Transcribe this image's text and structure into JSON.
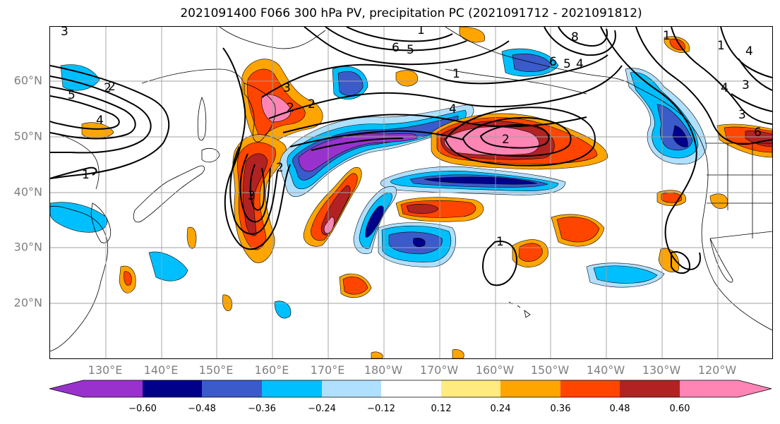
{
  "title": "2021091400 F066 300 hPa PV, precipitation PC (2021091712 - 2021091812)",
  "map": {
    "latitude_labels": [
      "60°N",
      "50°N",
      "40°N",
      "30°N",
      "20°N"
    ],
    "longitude_labels": [
      "130°E",
      "140°E",
      "150°E",
      "160°E",
      "170°E",
      "180°W",
      "170°W",
      "160°W",
      "150°W",
      "140°W",
      "130°W",
      "120°W"
    ],
    "pv_contour_labels": [
      "3",
      "2",
      "5",
      "4",
      "1",
      "2",
      "3",
      "1",
      "6",
      "5",
      "4",
      "8",
      "6",
      "5",
      "4",
      "1",
      "2",
      "1",
      "2",
      "3",
      "2",
      "3",
      "1",
      "4",
      "3",
      "1",
      "4",
      "6",
      "2"
    ],
    "gridline_color": "#a0a0a0",
    "coastline_color": "#000000",
    "pv_contour_color": "#000000"
  },
  "colorbar": {
    "orientation": "horizontal",
    "extend": "both",
    "bins": [
      {
        "color": "#9932cc"
      },
      {
        "color": "#00008b"
      },
      {
        "color": "#3a5bc9"
      },
      {
        "color": "#00bfff"
      },
      {
        "color": "#b0e0ff"
      },
      {
        "color": "#ffffff"
      },
      {
        "color": "#ffeb80"
      },
      {
        "color": "#ffa500"
      },
      {
        "color": "#ff4500"
      },
      {
        "color": "#b22222"
      },
      {
        "color": "#ff85b5"
      }
    ],
    "tick_labels": [
      "−0.60",
      "−0.48",
      "−0.36",
      "−0.24",
      "−0.12",
      "0.12",
      "0.24",
      "0.36",
      "0.48",
      "0.60"
    ]
  }
}
